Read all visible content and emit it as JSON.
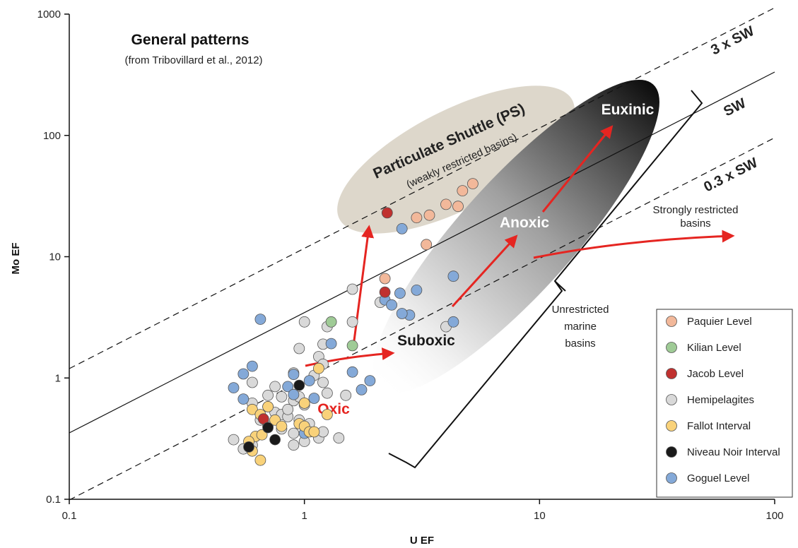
{
  "title": "General patterns",
  "subtitle": "(from Tribovillard et al., 2012)",
  "chart_data": {
    "type": "scatter",
    "xlabel": "U EF",
    "ylabel": "Mo EF",
    "xscale": "log",
    "yscale": "log",
    "xlim": [
      0.1,
      100
    ],
    "ylim": [
      0.1,
      1000
    ],
    "x_ticks": [
      "0.1",
      "1",
      "10",
      "100"
    ],
    "y_ticks": [
      "0.1",
      "1",
      "10",
      "100",
      "1000"
    ],
    "grid": false,
    "legend_position": "bottom-right",
    "reference_lines": [
      {
        "label": "3 x SW",
        "style": "dashed",
        "ratio": 3.24
      },
      {
        "label": "SW",
        "style": "solid",
        "ratio": 3.24
      },
      {
        "label": "0.3 x SW",
        "style": "dashed",
        "ratio": 3.24
      }
    ],
    "annotations": {
      "ps_title": "Particulate Shuttle (PS)",
      "ps_sub": "(weakly restricted basins)",
      "euxinic": "Euxinic",
      "anoxic": "Anoxic",
      "suboxic": "Suboxic",
      "oxic": "Oxic",
      "strongly_1": "Strongly restricted",
      "strongly_2": "basins",
      "unrestricted_1": "Unrestricted",
      "unrestricted_2": "marine",
      "unrestricted_3": "basins"
    },
    "series": [
      {
        "name": "Paquier Level",
        "color": "#f2b89a",
        "points": [
          [
            2.2,
            6.6
          ],
          [
            3.0,
            21
          ],
          [
            3.4,
            22
          ],
          [
            4.0,
            27
          ],
          [
            4.5,
            26
          ],
          [
            4.7,
            35
          ],
          [
            5.2,
            40
          ],
          [
            3.3,
            12.6
          ]
        ]
      },
      {
        "name": "Kilian Level",
        "color": "#9fcb96",
        "points": [
          [
            1.3,
            2.9
          ],
          [
            1.6,
            1.85
          ]
        ]
      },
      {
        "name": "Jacob Level",
        "color": "#c0312f",
        "points": [
          [
            2.25,
            23
          ],
          [
            2.2,
            5.1
          ],
          [
            0.67,
            0.46
          ]
        ]
      },
      {
        "name": "Hemipelagites",
        "color": "#d9d9d9",
        "points": [
          [
            1.6,
            5.4
          ],
          [
            2.1,
            4.2
          ],
          [
            1.0,
            2.9
          ],
          [
            1.25,
            2.65
          ],
          [
            1.2,
            1.9
          ],
          [
            0.95,
            1.75
          ],
          [
            1.6,
            2.9
          ],
          [
            0.9,
            1.1
          ],
          [
            1.1,
            1.05
          ],
          [
            1.15,
            1.5
          ],
          [
            1.2,
            1.3
          ],
          [
            0.6,
            0.92
          ],
          [
            0.75,
            0.85
          ],
          [
            0.8,
            0.7
          ],
          [
            0.9,
            0.65
          ],
          [
            1.0,
            0.6
          ],
          [
            1.2,
            0.92
          ],
          [
            1.25,
            0.75
          ],
          [
            1.5,
            0.72
          ],
          [
            0.6,
            0.62
          ],
          [
            0.7,
            0.58
          ],
          [
            0.75,
            0.52
          ],
          [
            0.8,
            0.5
          ],
          [
            0.85,
            0.48
          ],
          [
            0.95,
            0.45
          ],
          [
            1.05,
            0.42
          ],
          [
            0.65,
            0.45
          ],
          [
            0.7,
            0.4
          ],
          [
            0.8,
            0.38
          ],
          [
            0.9,
            0.35
          ],
          [
            1.0,
            0.3
          ],
          [
            1.15,
            0.32
          ],
          [
            1.4,
            0.32
          ],
          [
            0.5,
            0.31
          ],
          [
            0.55,
            0.26
          ],
          [
            0.6,
            0.28
          ],
          [
            0.9,
            0.28
          ],
          [
            0.85,
            0.55
          ],
          [
            0.7,
            0.72
          ],
          [
            4.0,
            2.65
          ],
          [
            1.2,
            0.36
          ],
          [
            0.95,
            0.7
          ]
        ]
      },
      {
        "name": "Fallot Interval",
        "color": "#f9d27a",
        "points": [
          [
            1.15,
            1.2
          ],
          [
            1.25,
            0.5
          ],
          [
            0.6,
            0.55
          ],
          [
            0.65,
            0.5
          ],
          [
            0.7,
            0.58
          ],
          [
            0.75,
            0.45
          ],
          [
            0.8,
            0.4
          ],
          [
            0.95,
            0.42
          ],
          [
            1.0,
            0.4
          ],
          [
            1.05,
            0.36
          ],
          [
            0.62,
            0.33
          ],
          [
            0.66,
            0.34
          ],
          [
            0.58,
            0.3
          ],
          [
            0.6,
            0.25
          ],
          [
            0.65,
            0.21
          ],
          [
            1.1,
            0.36
          ],
          [
            1.0,
            0.62
          ]
        ]
      },
      {
        "name": "Niveau Noir Interval",
        "color": "#1a1a1a",
        "points": [
          [
            0.95,
            0.87
          ],
          [
            0.7,
            0.39
          ],
          [
            0.75,
            0.31
          ],
          [
            0.58,
            0.27
          ]
        ]
      },
      {
        "name": "Goguel Level",
        "color": "#84a9d8",
        "points": [
          [
            2.6,
            17
          ],
          [
            2.2,
            4.4
          ],
          [
            2.35,
            4.0
          ],
          [
            2.55,
            5.0
          ],
          [
            3.0,
            5.3
          ],
          [
            2.8,
            3.3
          ],
          [
            4.3,
            6.9
          ],
          [
            4.3,
            2.9
          ],
          [
            0.65,
            3.05
          ],
          [
            0.6,
            1.25
          ],
          [
            0.55,
            1.08
          ],
          [
            0.5,
            0.83
          ],
          [
            0.55,
            0.67
          ],
          [
            0.9,
            1.07
          ],
          [
            1.0,
            0.62
          ],
          [
            1.3,
            1.92
          ],
          [
            1.6,
            1.12
          ],
          [
            1.75,
            0.8
          ],
          [
            0.85,
            0.85
          ],
          [
            1.05,
            0.95
          ],
          [
            0.9,
            0.73
          ],
          [
            1.0,
            0.35
          ],
          [
            1.1,
            0.68
          ],
          [
            2.6,
            3.4
          ],
          [
            1.9,
            0.95
          ]
        ]
      }
    ]
  }
}
